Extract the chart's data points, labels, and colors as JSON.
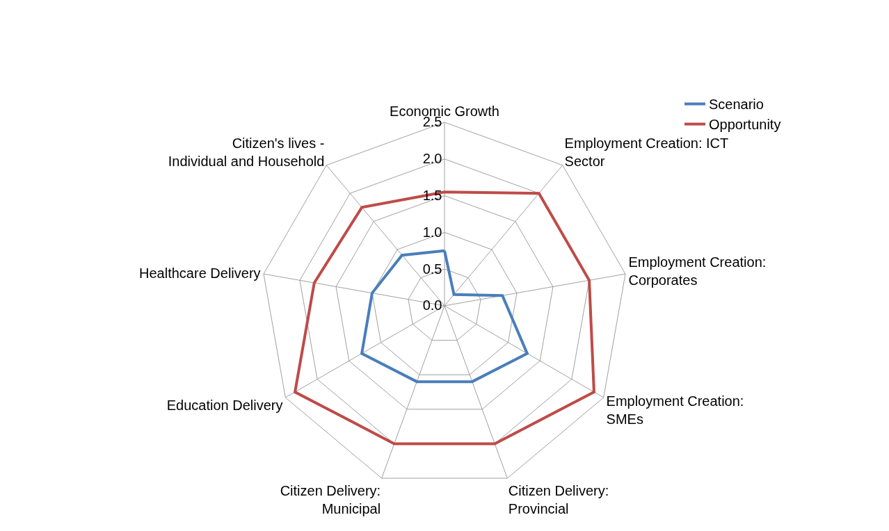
{
  "chart_data": {
    "type": "radar",
    "categories": [
      "Economic Growth",
      "Employment Creation: ICT Sector",
      "Employment Creation: Corporates",
      "Employment Creation: SMEs",
      "Citizen Delivery: Provincial",
      "Citizen Delivery: Municipal",
      "Education Delivery",
      "Healthcare Delivery",
      "Citizen's lives - Individual and Household"
    ],
    "series": [
      {
        "name": "Scenario",
        "color": "#4a7ebb",
        "values": [
          0.75,
          0.2,
          0.8,
          1.3,
          1.1,
          1.1,
          1.3,
          1.0,
          0.9
        ]
      },
      {
        "name": "Opportunity",
        "color": "#be4b48",
        "values": [
          1.55,
          2.0,
          2.0,
          2.35,
          2.0,
          2.0,
          2.35,
          1.8,
          1.75
        ]
      }
    ],
    "ylim": [
      0,
      2.5
    ],
    "yticks": [
      {
        "value": 0,
        "label": "0.0"
      },
      0.5,
      {
        "value": 1,
        "label": "1.0"
      },
      1.5,
      {
        "value": 2,
        "label": "2.0"
      },
      2.5
    ],
    "grid": true,
    "legend": "top right",
    "marker": "none",
    "line_style": "solid"
  }
}
